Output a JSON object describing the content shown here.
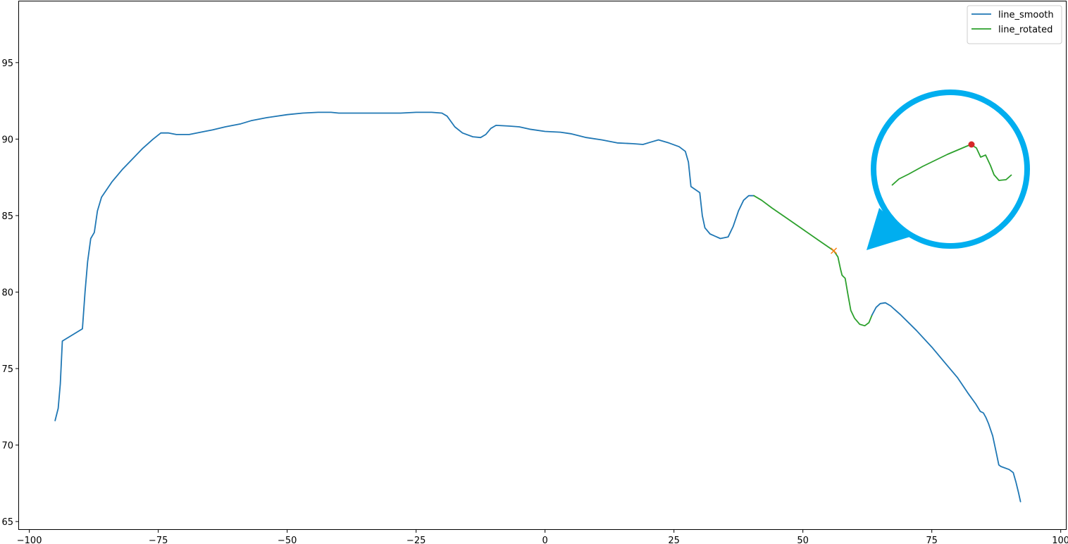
{
  "chart_data": {
    "type": "line",
    "title": "",
    "xlabel": "",
    "ylabel": "",
    "xlim": [
      -102,
      101
    ],
    "ylim": [
      64.5,
      99
    ],
    "x_ticks": [
      -100,
      -75,
      -50,
      -25,
      0,
      25,
      50,
      75,
      100
    ],
    "x_tick_labels": [
      "−100",
      "−75",
      "−50",
      "−25",
      "0",
      "25",
      "50",
      "75",
      "100"
    ],
    "y_ticks": [
      65,
      70,
      75,
      80,
      85,
      90,
      95
    ],
    "y_tick_labels": [
      "65",
      "70",
      "75",
      "80",
      "85",
      "90",
      "95"
    ],
    "grid": false,
    "legend": {
      "position": "top-right"
    },
    "series": [
      {
        "name": "line_smooth",
        "color": "#1f77b4",
        "points": [
          [
            -95.0,
            71.6
          ],
          [
            -94.4,
            72.4
          ],
          [
            -94.0,
            74.0
          ],
          [
            -93.6,
            76.8
          ],
          [
            -89.7,
            77.6
          ],
          [
            -89.2,
            80.0
          ],
          [
            -88.7,
            82.0
          ],
          [
            -88.1,
            83.5
          ],
          [
            -87.4,
            83.9
          ],
          [
            -86.8,
            85.3
          ],
          [
            -86.0,
            86.2
          ],
          [
            -84.0,
            87.2
          ],
          [
            -82.0,
            88.0
          ],
          [
            -80.0,
            88.7
          ],
          [
            -78.0,
            89.4
          ],
          [
            -76.0,
            90.0
          ],
          [
            -74.5,
            90.4
          ],
          [
            -73.0,
            90.4
          ],
          [
            -71.5,
            90.3
          ],
          [
            -69.0,
            90.3
          ],
          [
            -66.0,
            90.5
          ],
          [
            -64.5,
            90.6
          ],
          [
            -62.0,
            90.8
          ],
          [
            -59.0,
            91.0
          ],
          [
            -57.0,
            91.2
          ],
          [
            -54.0,
            91.4
          ],
          [
            -50.0,
            91.6
          ],
          [
            -47.0,
            91.7
          ],
          [
            -44.0,
            91.75
          ],
          [
            -41.5,
            91.75
          ],
          [
            -40.0,
            91.7
          ],
          [
            -37.0,
            91.7
          ],
          [
            -34.0,
            91.7
          ],
          [
            -31.0,
            91.7
          ],
          [
            -28.0,
            91.7
          ],
          [
            -25.0,
            91.75
          ],
          [
            -22.0,
            91.75
          ],
          [
            -20.0,
            91.7
          ],
          [
            -19.0,
            91.5
          ],
          [
            -17.5,
            90.8
          ],
          [
            -16.0,
            90.4
          ],
          [
            -14.0,
            90.15
          ],
          [
            -12.5,
            90.1
          ],
          [
            -11.5,
            90.3
          ],
          [
            -10.5,
            90.7
          ],
          [
            -9.5,
            90.9
          ],
          [
            -7.0,
            90.85
          ],
          [
            -5.0,
            90.8
          ],
          [
            -3.0,
            90.65
          ],
          [
            0.0,
            90.5
          ],
          [
            3.0,
            90.45
          ],
          [
            5.0,
            90.35
          ],
          [
            8.0,
            90.1
          ],
          [
            11.0,
            89.95
          ],
          [
            14.0,
            89.75
          ],
          [
            17.0,
            89.7
          ],
          [
            19.0,
            89.65
          ],
          [
            20.5,
            89.8
          ],
          [
            22.0,
            89.95
          ],
          [
            24.0,
            89.75
          ],
          [
            26.0,
            89.5
          ],
          [
            27.2,
            89.2
          ],
          [
            27.8,
            88.5
          ],
          [
            28.3,
            86.9
          ],
          [
            30.0,
            86.5
          ],
          [
            30.5,
            85.0
          ],
          [
            31.0,
            84.2
          ],
          [
            32.0,
            83.8
          ],
          [
            34.0,
            83.5
          ],
          [
            35.5,
            83.6
          ],
          [
            36.5,
            84.3
          ],
          [
            37.5,
            85.3
          ],
          [
            38.5,
            86.0
          ],
          [
            39.5,
            86.3
          ],
          [
            40.5,
            86.3
          ]
        ]
      },
      {
        "name": "line_rotated",
        "color": "#2ca02c",
        "points": [
          [
            40.5,
            86.3
          ],
          [
            42.0,
            86.0
          ],
          [
            44.0,
            85.5
          ],
          [
            47.0,
            84.8
          ],
          [
            50.0,
            84.1
          ],
          [
            53.0,
            83.4
          ],
          [
            56.0,
            82.7
          ],
          [
            56.8,
            82.3
          ],
          [
            57.3,
            81.5
          ],
          [
            57.6,
            81.1
          ],
          [
            58.2,
            80.9
          ],
          [
            58.7,
            79.9
          ],
          [
            59.3,
            78.8
          ],
          [
            60.0,
            78.3
          ],
          [
            61.0,
            77.9
          ],
          [
            62.0,
            77.8
          ],
          [
            62.8,
            78.0
          ],
          [
            63.4,
            78.5
          ]
        ]
      },
      {
        "name": "",
        "color": "#1f77b4",
        "points": [
          [
            63.4,
            78.5
          ],
          [
            64.2,
            79.0
          ],
          [
            65.0,
            79.25
          ],
          [
            66.0,
            79.3
          ],
          [
            67.0,
            79.1
          ],
          [
            69.0,
            78.5
          ],
          [
            72.0,
            77.5
          ],
          [
            75.0,
            76.4
          ],
          [
            78.0,
            75.2
          ],
          [
            80.0,
            74.4
          ],
          [
            82.0,
            73.4
          ],
          [
            83.5,
            72.7
          ],
          [
            84.4,
            72.2
          ],
          [
            85.0,
            72.1
          ],
          [
            85.5,
            71.8
          ],
          [
            86.0,
            71.4
          ],
          [
            86.8,
            70.6
          ],
          [
            87.5,
            69.5
          ],
          [
            88.0,
            68.7
          ],
          [
            88.4,
            68.6
          ],
          [
            90.0,
            68.4
          ],
          [
            90.8,
            68.2
          ],
          [
            91.3,
            67.6
          ],
          [
            91.8,
            66.9
          ],
          [
            92.2,
            66.3
          ]
        ]
      }
    ],
    "marker_point": {
      "x": 56.0,
      "y": 82.7,
      "color": "#ff7f0e"
    },
    "callout": {
      "color": "#00aeef",
      "line_color": "#2ca02c",
      "dot_color": "#d62728"
    }
  }
}
